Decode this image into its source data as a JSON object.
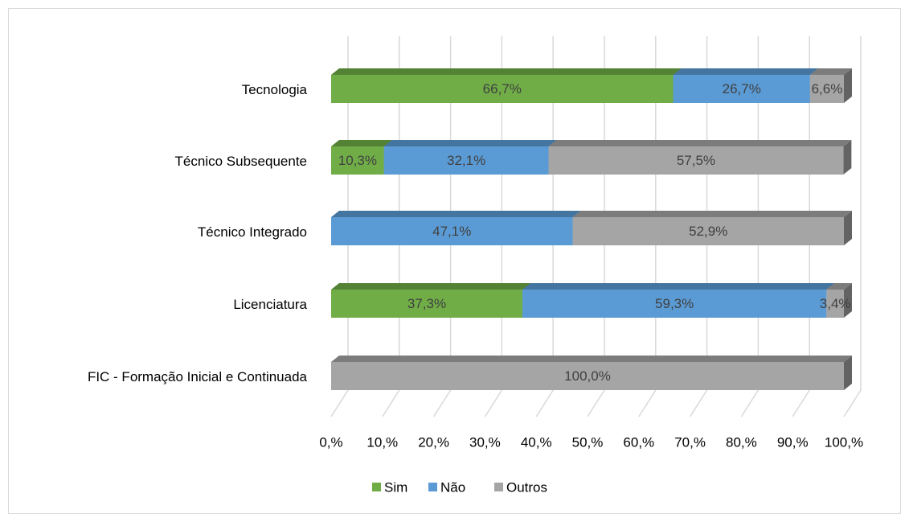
{
  "chart_data": {
    "type": "stacked-bar-horizontal-3d",
    "categories": [
      "Tecnologia",
      "Técnico Subsequente",
      "Técnico Integrado",
      "Licenciatura",
      "FIC -  Formação Inicial e Continuada"
    ],
    "series": [
      {
        "name": "Sim",
        "color": "#70ad47",
        "values": [
          66.7,
          10.3,
          0,
          37.3,
          0
        ],
        "value_labels": [
          "66,7%",
          "10,3%",
          null,
          "37,3%",
          null
        ]
      },
      {
        "name": "Não",
        "color": "#5b9bd5",
        "values": [
          26.7,
          32.1,
          47.1,
          59.3,
          0
        ],
        "value_labels": [
          "26,7%",
          "32,1%",
          "47,1%",
          "59,3%",
          null
        ]
      },
      {
        "name": "Outros",
        "color": "#a5a5a5",
        "values": [
          6.6,
          57.5,
          52.9,
          3.4,
          100
        ],
        "value_labels": [
          "6,6%",
          "57,5%",
          "52,9%",
          "3,4%",
          "100,0%"
        ]
      }
    ],
    "xlim": [
      0,
      100
    ],
    "xticks": [
      {
        "value": 0,
        "label": "0,%"
      },
      {
        "value": 10,
        "label": "10,%"
      },
      {
        "value": 20,
        "label": "20,%"
      },
      {
        "value": 30,
        "label": "30,%"
      },
      {
        "value": 40,
        "label": "40,%"
      },
      {
        "value": 50,
        "label": "50,%"
      },
      {
        "value": 60,
        "label": "60,%"
      },
      {
        "value": 70,
        "label": "70,%"
      },
      {
        "value": 80,
        "label": "80,%"
      },
      {
        "value": 90,
        "label": "90,%"
      },
      {
        "value": 100,
        "label": "100,%"
      }
    ],
    "grid": true,
    "legend": "bottom"
  }
}
